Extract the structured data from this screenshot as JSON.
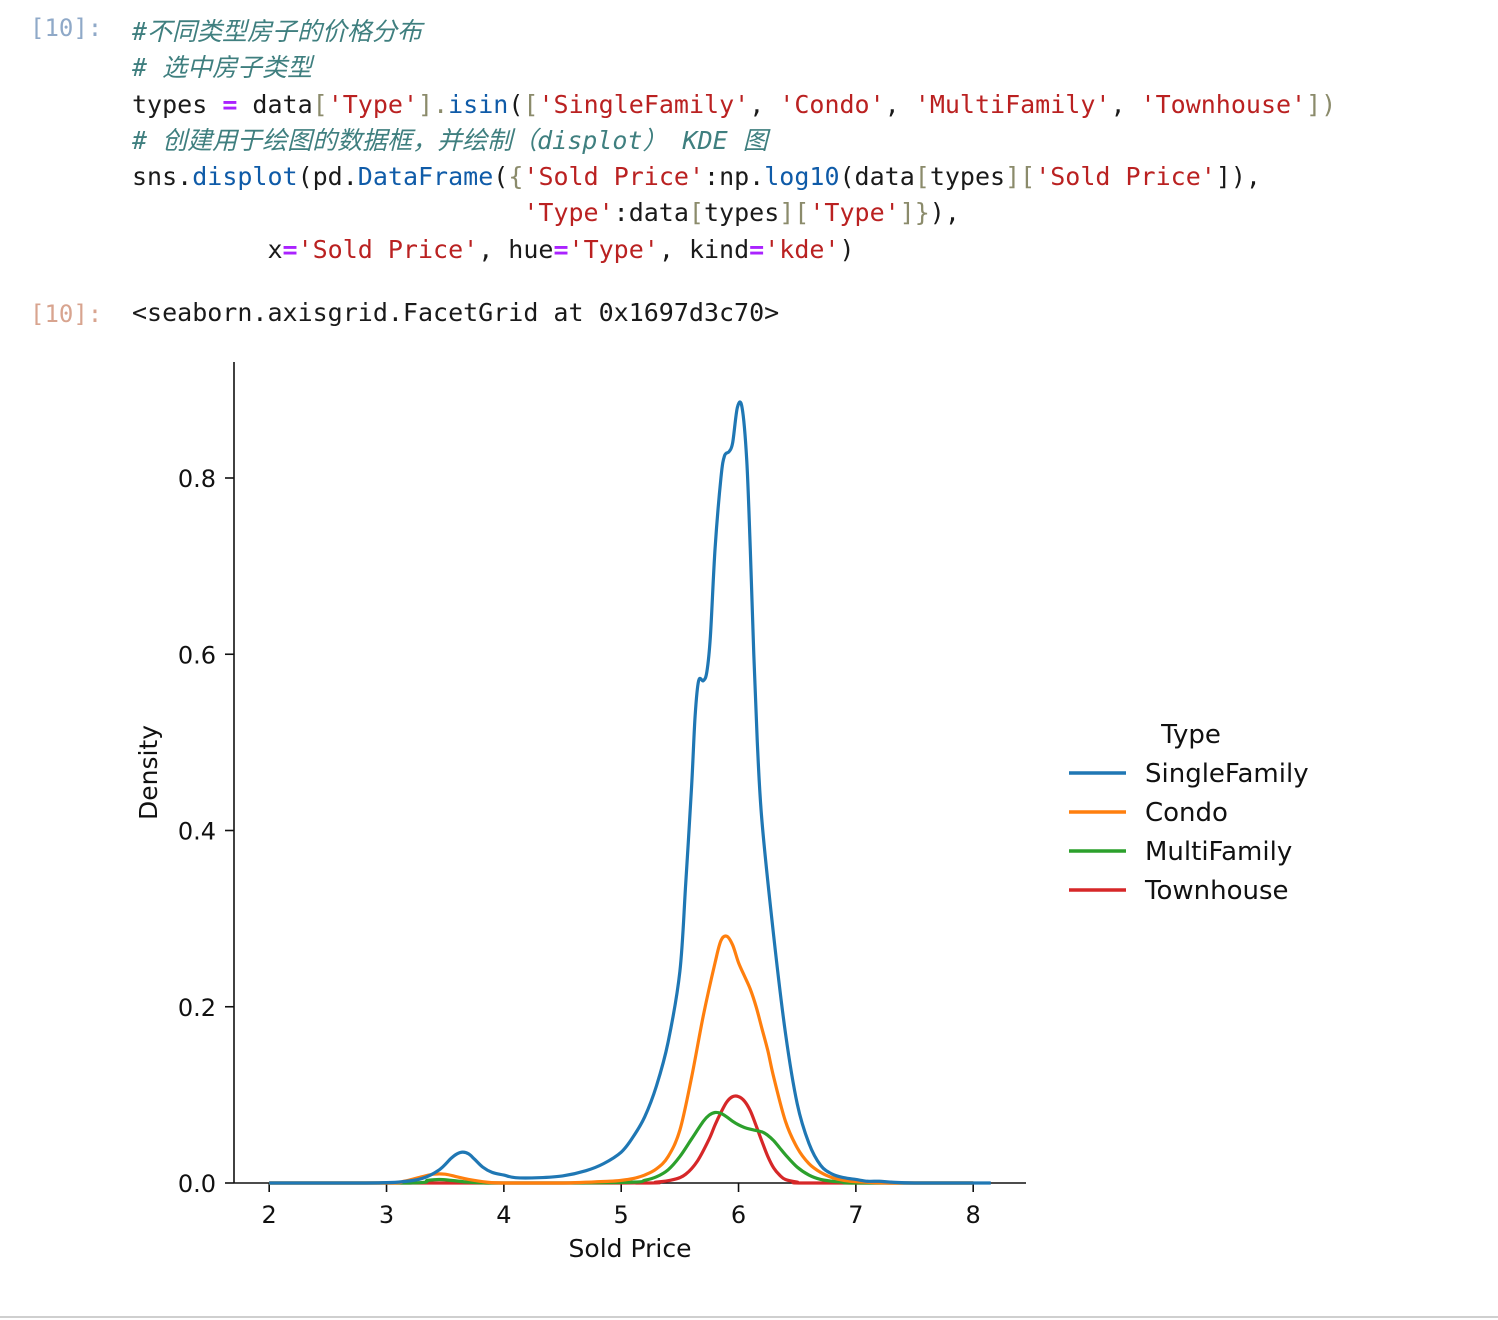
{
  "input_prompt": "[10]:",
  "output_prompt": "[10]:",
  "code": {
    "line1_comment": "#不同类型房子的价格分布",
    "line2_comment": "# 选中房子类型",
    "line3": [
      "types ",
      "=",
      " data",
      "[",
      "'Type'",
      "].",
      "isin",
      "(",
      "[",
      "'SingleFamily'",
      ", ",
      "'Condo'",
      ", ",
      "'MultiFamily'",
      ", ",
      "'Townhouse'",
      "])"
    ],
    "line4_comment": "# 创建用于绘图的数据框，并绘制（displot） KDE 图",
    "line5": [
      "sns.",
      "displot",
      "(pd.",
      "DataFrame",
      "(",
      "{",
      "'Sold Price'",
      ":np.",
      "log10",
      "(data",
      "[",
      "types",
      "][",
      "'Sold Price'",
      "]),"
    ],
    "line6": [
      "                          ",
      "'Type'",
      ":data",
      "[",
      "types",
      "][",
      "'Type'",
      "]}",
      "),"
    ],
    "line7": [
      "         x",
      "=",
      "'Sold Price'",
      ", hue",
      "=",
      "'Type'",
      ", kind",
      "=",
      "'kde'",
      ")"
    ]
  },
  "output_text": "<seaborn.axisgrid.FacetGrid at 0x1697d3c70>",
  "chart_data": {
    "type": "line",
    "title": "",
    "xlabel": "Sold Price",
    "ylabel": "Density",
    "xlim": [
      1.7,
      8.45
    ],
    "ylim": [
      0,
      0.92
    ],
    "xticks": [
      2,
      3,
      4,
      5,
      6,
      7,
      8
    ],
    "yticks": [
      0.0,
      0.2,
      0.4,
      0.6,
      0.8
    ],
    "grid": false,
    "legend": {
      "title": "Type",
      "placement": "right"
    },
    "series": [
      {
        "name": "SingleFamily",
        "color": "#1f77b4",
        "x": [
          2.0,
          2.8,
          3.1,
          3.3,
          3.45,
          3.55,
          3.6,
          3.65,
          3.7,
          3.75,
          3.82,
          3.9,
          4.0,
          4.1,
          4.3,
          4.5,
          4.7,
          4.85,
          5.0,
          5.1,
          5.2,
          5.3,
          5.4,
          5.5,
          5.55,
          5.6,
          5.63,
          5.66,
          5.7,
          5.73,
          5.76,
          5.8,
          5.85,
          5.88,
          5.92,
          5.95,
          5.99,
          6.03,
          6.07,
          6.1,
          6.13,
          6.16,
          6.2,
          6.3,
          6.4,
          6.5,
          6.6,
          6.7,
          6.8,
          6.9,
          7.0,
          7.1,
          7.2,
          7.3,
          7.5,
          8.0,
          8.15
        ],
        "values": [
          0.0,
          0.0,
          0.001,
          0.005,
          0.015,
          0.028,
          0.033,
          0.035,
          0.033,
          0.027,
          0.018,
          0.012,
          0.009,
          0.006,
          0.006,
          0.008,
          0.014,
          0.022,
          0.035,
          0.052,
          0.075,
          0.11,
          0.16,
          0.24,
          0.34,
          0.45,
          0.53,
          0.57,
          0.57,
          0.58,
          0.62,
          0.72,
          0.8,
          0.825,
          0.83,
          0.84,
          0.88,
          0.88,
          0.82,
          0.72,
          0.6,
          0.5,
          0.41,
          0.28,
          0.17,
          0.09,
          0.045,
          0.02,
          0.01,
          0.006,
          0.004,
          0.002,
          0.002,
          0.001,
          0.0,
          0.0,
          0.0
        ],
        "label_note": ""
      },
      {
        "name": "Condo",
        "color": "#ff7f0e",
        "x": [
          2.0,
          3.0,
          3.15,
          3.3,
          3.4,
          3.5,
          3.6,
          3.7,
          3.85,
          4.0,
          4.5,
          4.9,
          5.0,
          5.1,
          5.2,
          5.3,
          5.4,
          5.5,
          5.6,
          5.7,
          5.8,
          5.85,
          5.9,
          5.95,
          6.0,
          6.05,
          6.1,
          6.15,
          6.2,
          6.25,
          6.3,
          6.4,
          6.5,
          6.6,
          6.7,
          6.8,
          6.9,
          7.0,
          7.3,
          8.0
        ],
        "values": [
          0.0,
          0.0,
          0.002,
          0.007,
          0.01,
          0.01,
          0.007,
          0.004,
          0.001,
          0.0,
          0.0,
          0.002,
          0.003,
          0.005,
          0.009,
          0.016,
          0.03,
          0.06,
          0.12,
          0.19,
          0.25,
          0.275,
          0.28,
          0.27,
          0.25,
          0.235,
          0.22,
          0.2,
          0.175,
          0.15,
          0.12,
          0.07,
          0.04,
          0.022,
          0.012,
          0.006,
          0.003,
          0.0015,
          0.0,
          0.0
        ]
      },
      {
        "name": "MultiFamily",
        "color": "#2ca02c",
        "x": [
          2.0,
          3.2,
          3.35,
          3.45,
          3.55,
          3.7,
          3.9,
          4.5,
          5.1,
          5.2,
          5.3,
          5.4,
          5.5,
          5.6,
          5.7,
          5.75,
          5.8,
          5.85,
          5.9,
          5.95,
          6.0,
          6.05,
          6.1,
          6.2,
          6.25,
          6.3,
          6.35,
          6.4,
          6.5,
          6.6,
          6.7,
          6.8,
          6.9,
          7.0,
          8.0
        ],
        "values": [
          0.0,
          0.0,
          0.003,
          0.004,
          0.003,
          0.001,
          0.0,
          0.0,
          0.001,
          0.003,
          0.007,
          0.015,
          0.03,
          0.05,
          0.07,
          0.077,
          0.08,
          0.079,
          0.075,
          0.07,
          0.066,
          0.063,
          0.061,
          0.058,
          0.054,
          0.048,
          0.04,
          0.032,
          0.018,
          0.009,
          0.004,
          0.002,
          0.001,
          0.0,
          0.0
        ]
      },
      {
        "name": "Townhouse",
        "color": "#d62728",
        "x": [
          2.0,
          5.0,
          5.3,
          5.45,
          5.55,
          5.65,
          5.75,
          5.8,
          5.85,
          5.9,
          5.95,
          6.0,
          6.05,
          6.1,
          6.15,
          6.2,
          6.25,
          6.3,
          6.35,
          6.4,
          6.5,
          6.6,
          8.0
        ],
        "values": [
          0.0,
          0.0,
          0.001,
          0.004,
          0.01,
          0.025,
          0.05,
          0.066,
          0.08,
          0.092,
          0.098,
          0.098,
          0.093,
          0.082,
          0.065,
          0.047,
          0.03,
          0.017,
          0.009,
          0.004,
          0.001,
          0.0,
          0.0
        ]
      }
    ]
  }
}
